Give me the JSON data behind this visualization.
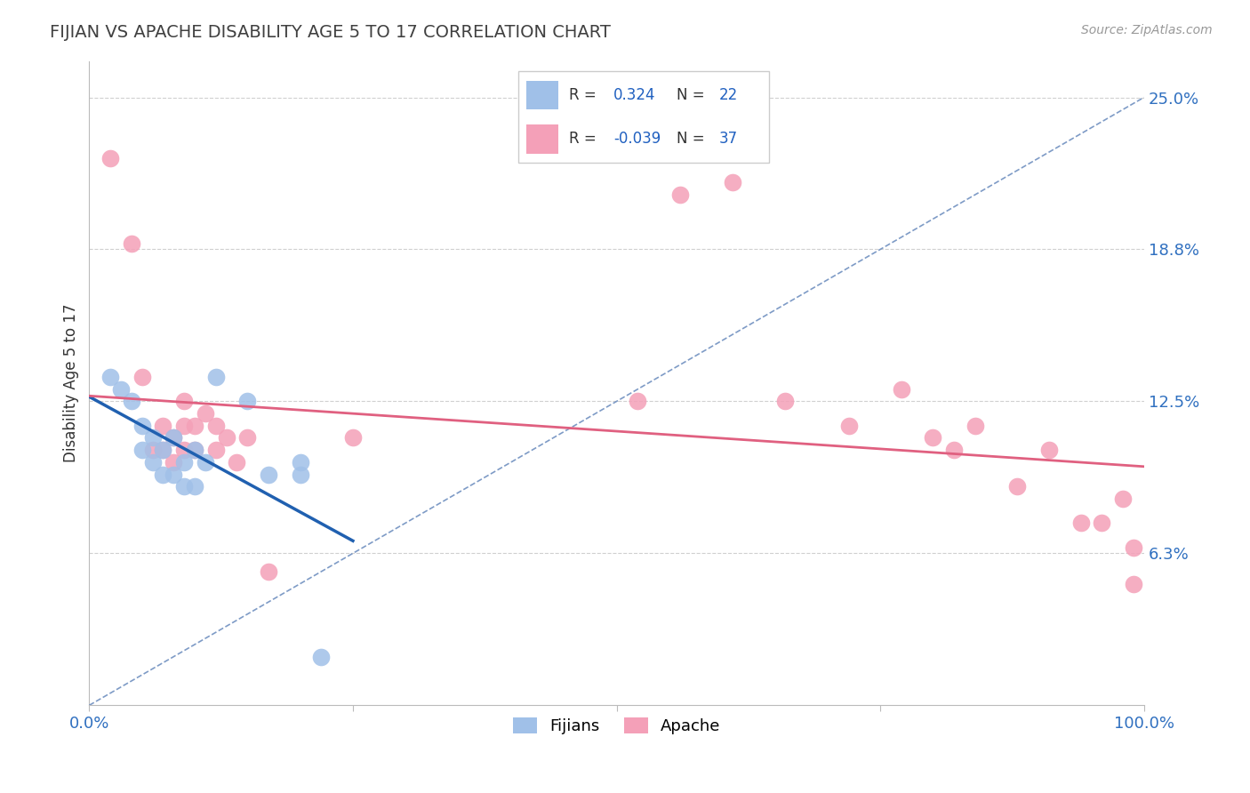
{
  "title": "FIJIAN VS APACHE DISABILITY AGE 5 TO 17 CORRELATION CHART",
  "ylabel": "Disability Age 5 to 17",
  "source_text": "Source: ZipAtlas.com",
  "x_min": 0.0,
  "x_max": 100.0,
  "y_min": 0.0,
  "y_max": 26.5,
  "y_ticks": [
    6.25,
    12.5,
    18.75,
    25.0
  ],
  "y_tick_labels": [
    "6.3%",
    "12.5%",
    "18.8%",
    "25.0%"
  ],
  "x_ticks": [
    0,
    25,
    50,
    75,
    100
  ],
  "x_tick_labels": [
    "0.0%",
    "",
    "",
    "",
    "100.0%"
  ],
  "fijian_color": "#a0c0e8",
  "apache_color": "#f4a0b8",
  "fijian_label": "Fijians",
  "apache_label": "Apache",
  "fijian_R": 0.324,
  "fijian_N": 22,
  "apache_R": -0.039,
  "apache_N": 37,
  "legend_R_color": "#2060c0",
  "legend_N_color": "#2060c0",
  "fijian_line_color": "#2060b0",
  "apache_line_color": "#e06080",
  "ref_line_color": "#7090c0",
  "ref_line_style": "--",
  "grid_color": "#d0d0d0",
  "title_color": "#404040",
  "tick_color": "#3070c0",
  "fijian_scatter_x": [
    2,
    3,
    4,
    5,
    5,
    6,
    6,
    7,
    7,
    8,
    8,
    9,
    9,
    10,
    10,
    11,
    12,
    15,
    17,
    20,
    22,
    20
  ],
  "fijian_scatter_y": [
    13.5,
    13.0,
    12.5,
    10.5,
    11.5,
    10.0,
    11.0,
    9.5,
    10.5,
    9.5,
    11.0,
    9.0,
    10.0,
    10.5,
    9.0,
    10.0,
    13.5,
    12.5,
    9.5,
    10.0,
    2.0,
    9.5
  ],
  "apache_scatter_x": [
    2,
    4,
    5,
    6,
    7,
    7,
    8,
    8,
    9,
    9,
    9,
    10,
    10,
    11,
    12,
    12,
    13,
    14,
    15,
    17,
    25,
    52,
    56,
    61,
    66,
    72,
    77,
    80,
    82,
    84,
    88,
    91,
    94,
    96,
    98,
    99,
    99
  ],
  "apache_scatter_y": [
    22.5,
    19.0,
    13.5,
    10.5,
    11.5,
    10.5,
    11.0,
    10.0,
    11.5,
    10.5,
    12.5,
    10.5,
    11.5,
    12.0,
    11.5,
    10.5,
    11.0,
    10.0,
    11.0,
    5.5,
    11.0,
    12.5,
    21.0,
    21.5,
    12.5,
    11.5,
    13.0,
    11.0,
    10.5,
    11.5,
    9.0,
    10.5,
    7.5,
    7.5,
    8.5,
    6.5,
    5.0
  ]
}
